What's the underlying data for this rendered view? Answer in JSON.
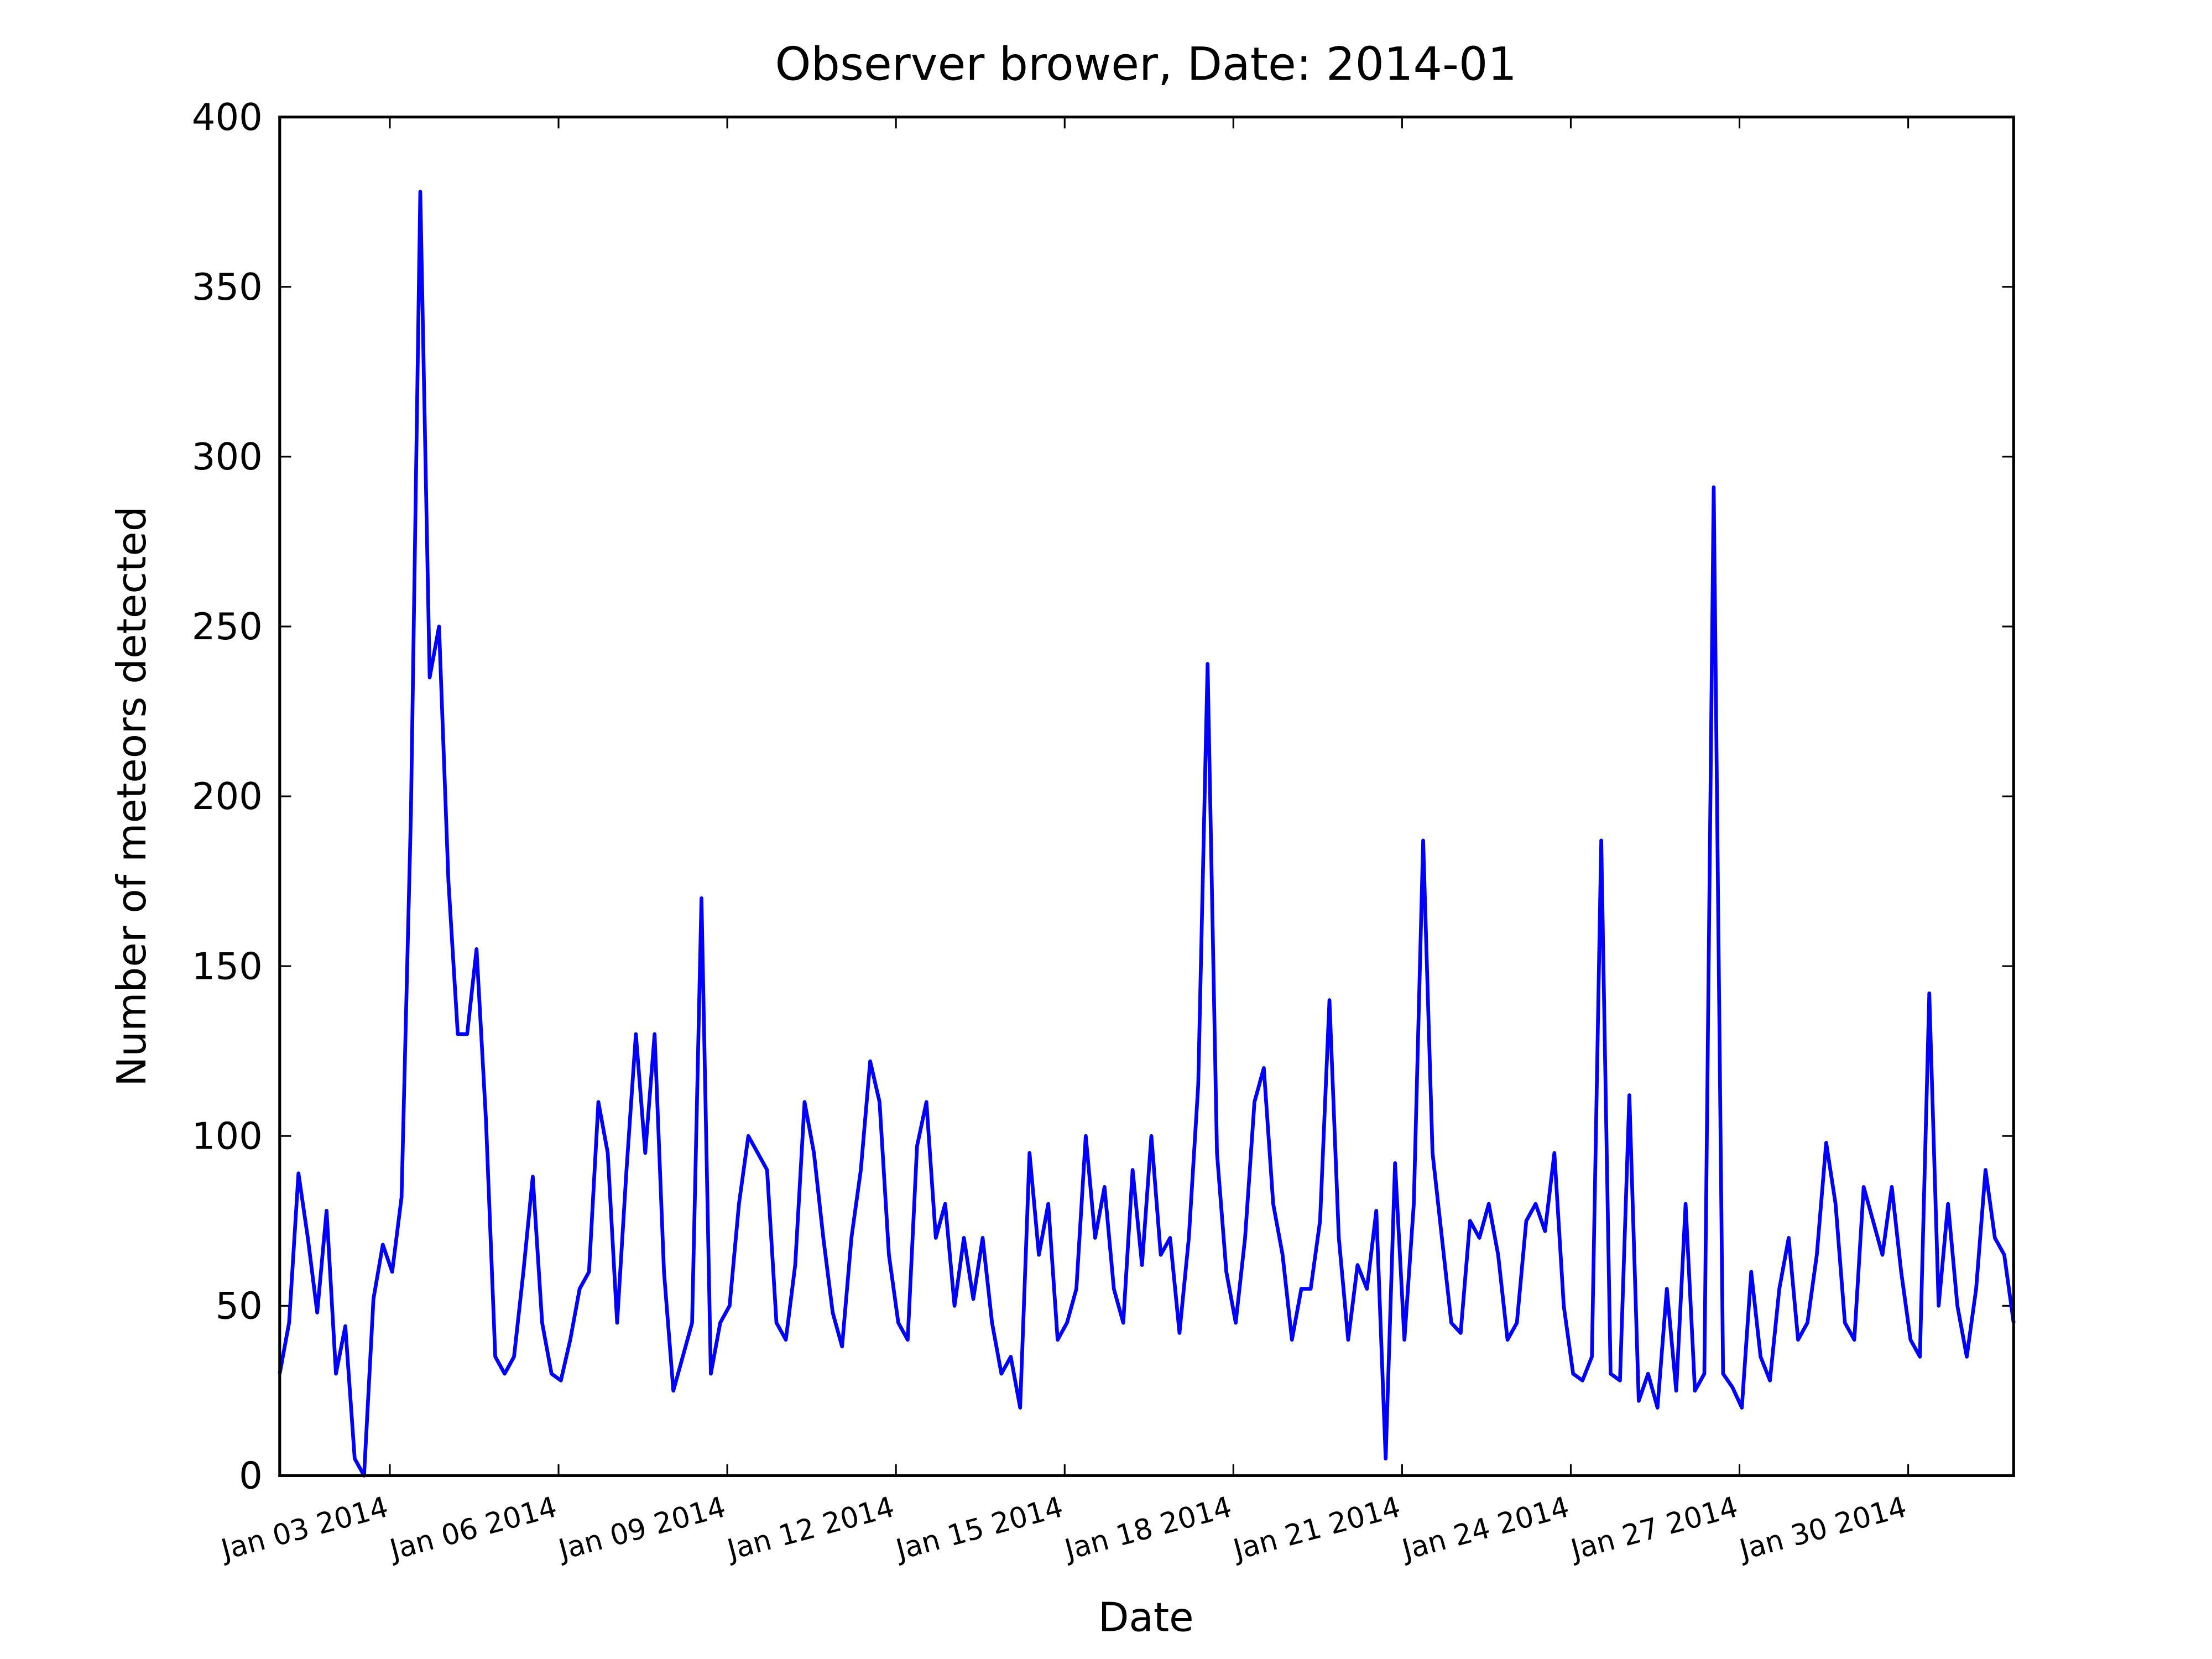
{
  "chart_data": {
    "type": "line",
    "title": "Observer brower, Date: 2014-01",
    "x_label": "Date",
    "y_label": "Number of meteors detected",
    "color": "#0000ff",
    "x": [
      "2014-01-01T01:00",
      "2014-01-01T05:00",
      "2014-01-01T09:00",
      "2014-01-01T13:00",
      "2014-01-01T17:00",
      "2014-01-01T21:00",
      "2014-01-02T01:00",
      "2014-01-02T05:00",
      "2014-01-02T09:00",
      "2014-01-02T13:00",
      "2014-01-02T17:00",
      "2014-01-02T21:00",
      "2014-01-03T01:00",
      "2014-01-03T05:00",
      "2014-01-03T09:00",
      "2014-01-03T13:00",
      "2014-01-03T17:00",
      "2014-01-03T21:00",
      "2014-01-04T01:00",
      "2014-01-04T05:00",
      "2014-01-04T09:00",
      "2014-01-04T13:00",
      "2014-01-04T17:00",
      "2014-01-04T21:00",
      "2014-01-05T01:00",
      "2014-01-05T05:00",
      "2014-01-05T09:00",
      "2014-01-05T13:00",
      "2014-01-05T17:00",
      "2014-01-05T21:00",
      "2014-01-06T01:00",
      "2014-01-06T05:00",
      "2014-01-06T09:00",
      "2014-01-06T13:00",
      "2014-01-06T17:00",
      "2014-01-06T21:00",
      "2014-01-07T01:00",
      "2014-01-07T05:00",
      "2014-01-07T09:00",
      "2014-01-07T13:00",
      "2014-01-07T17:00",
      "2014-01-07T21:00",
      "2014-01-08T01:00",
      "2014-01-08T05:00",
      "2014-01-08T09:00",
      "2014-01-08T13:00",
      "2014-01-08T17:00",
      "2014-01-08T21:00",
      "2014-01-09T01:00",
      "2014-01-09T05:00",
      "2014-01-09T09:00",
      "2014-01-09T13:00",
      "2014-01-09T17:00",
      "2014-01-09T21:00",
      "2014-01-10T01:00",
      "2014-01-10T05:00",
      "2014-01-10T09:00",
      "2014-01-10T13:00",
      "2014-01-10T17:00",
      "2014-01-10T21:00",
      "2014-01-11T01:00",
      "2014-01-11T05:00",
      "2014-01-11T09:00",
      "2014-01-11T13:00",
      "2014-01-11T17:00",
      "2014-01-11T21:00",
      "2014-01-12T01:00",
      "2014-01-12T05:00",
      "2014-01-12T09:00",
      "2014-01-12T13:00",
      "2014-01-12T17:00",
      "2014-01-12T21:00",
      "2014-01-13T01:00",
      "2014-01-13T05:00",
      "2014-01-13T09:00",
      "2014-01-13T13:00",
      "2014-01-13T17:00",
      "2014-01-13T21:00",
      "2014-01-14T01:00",
      "2014-01-14T05:00",
      "2014-01-14T09:00",
      "2014-01-14T13:00",
      "2014-01-14T17:00",
      "2014-01-14T21:00",
      "2014-01-15T01:00",
      "2014-01-15T05:00",
      "2014-01-15T09:00",
      "2014-01-15T13:00",
      "2014-01-15T17:00",
      "2014-01-15T21:00",
      "2014-01-16T01:00",
      "2014-01-16T05:00",
      "2014-01-16T09:00",
      "2014-01-16T13:00",
      "2014-01-16T17:00",
      "2014-01-16T21:00",
      "2014-01-17T01:00",
      "2014-01-17T05:00",
      "2014-01-17T09:00",
      "2014-01-17T13:00",
      "2014-01-17T17:00",
      "2014-01-17T21:00",
      "2014-01-18T01:00",
      "2014-01-18T05:00",
      "2014-01-18T09:00",
      "2014-01-18T13:00",
      "2014-01-18T17:00",
      "2014-01-18T21:00",
      "2014-01-19T01:00",
      "2014-01-19T05:00",
      "2014-01-19T09:00",
      "2014-01-19T13:00",
      "2014-01-19T17:00",
      "2014-01-19T21:00",
      "2014-01-20T01:00",
      "2014-01-20T05:00",
      "2014-01-20T09:00",
      "2014-01-20T13:00",
      "2014-01-20T17:00",
      "2014-01-20T21:00",
      "2014-01-21T01:00",
      "2014-01-21T05:00",
      "2014-01-21T09:00",
      "2014-01-21T13:00",
      "2014-01-21T17:00",
      "2014-01-21T21:00",
      "2014-01-22T01:00",
      "2014-01-22T05:00",
      "2014-01-22T09:00",
      "2014-01-22T13:00",
      "2014-01-22T17:00",
      "2014-01-22T21:00",
      "2014-01-23T01:00",
      "2014-01-23T05:00",
      "2014-01-23T09:00",
      "2014-01-23T13:00",
      "2014-01-23T17:00",
      "2014-01-23T21:00",
      "2014-01-24T01:00",
      "2014-01-24T05:00",
      "2014-01-24T09:00",
      "2014-01-24T13:00",
      "2014-01-24T17:00",
      "2014-01-24T21:00",
      "2014-01-25T01:00",
      "2014-01-25T05:00",
      "2014-01-25T09:00",
      "2014-01-25T13:00",
      "2014-01-25T17:00",
      "2014-01-25T21:00",
      "2014-01-26T01:00",
      "2014-01-26T05:00",
      "2014-01-26T09:00",
      "2014-01-26T13:00",
      "2014-01-26T17:00",
      "2014-01-26T21:00",
      "2014-01-27T01:00",
      "2014-01-27T05:00",
      "2014-01-27T09:00",
      "2014-01-27T13:00",
      "2014-01-27T17:00",
      "2014-01-27T21:00",
      "2014-01-28T01:00",
      "2014-01-28T05:00",
      "2014-01-28T09:00",
      "2014-01-28T13:00",
      "2014-01-28T17:00",
      "2014-01-28T21:00",
      "2014-01-29T01:00",
      "2014-01-29T05:00",
      "2014-01-29T09:00",
      "2014-01-29T13:00",
      "2014-01-29T17:00",
      "2014-01-29T21:00",
      "2014-01-30T01:00",
      "2014-01-30T05:00",
      "2014-01-30T09:00",
      "2014-01-30T13:00",
      "2014-01-30T17:00",
      "2014-01-30T21:00",
      "2014-01-31T01:00",
      "2014-01-31T05:00",
      "2014-01-31T09:00",
      "2014-01-31T13:00",
      "2014-01-31T17:00",
      "2014-01-31T21:00"
    ],
    "values": [
      30,
      45,
      89,
      70,
      48,
      78,
      30,
      44,
      5,
      0,
      52,
      68,
      60,
      82,
      195,
      378,
      235,
      250,
      175,
      130,
      130,
      155,
      105,
      35,
      30,
      35,
      60,
      88,
      45,
      30,
      28,
      40,
      55,
      60,
      110,
      95,
      45,
      90,
      130,
      95,
      130,
      60,
      25,
      35,
      45,
      170,
      30,
      45,
      50,
      80,
      100,
      95,
      90,
      45,
      40,
      62,
      110,
      95,
      70,
      48,
      38,
      70,
      90,
      122,
      110,
      65,
      45,
      40,
      97,
      110,
      70,
      80,
      50,
      70,
      52,
      70,
      45,
      30,
      35,
      20,
      95,
      65,
      80,
      40,
      45,
      55,
      100,
      70,
      85,
      55,
      45,
      90,
      62,
      100,
      65,
      70,
      42,
      70,
      115,
      239,
      95,
      60,
      45,
      70,
      110,
      120,
      80,
      65,
      40,
      55,
      55,
      75,
      140,
      70,
      40,
      62,
      55,
      78,
      5,
      92,
      40,
      80,
      187,
      95,
      70,
      45,
      42,
      75,
      70,
      80,
      65,
      40,
      45,
      75,
      80,
      72,
      95,
      50,
      30,
      28,
      35,
      187,
      30,
      28,
      112,
      22,
      30,
      20,
      55,
      25,
      80,
      25,
      30,
      291,
      30,
      26,
      20,
      60,
      35,
      28,
      55,
      70,
      40,
      45,
      65,
      98,
      80,
      45,
      40,
      85,
      75,
      65,
      85,
      60,
      40,
      35,
      142,
      50,
      80,
      50,
      35,
      55,
      90,
      70,
      65,
      45
    ],
    "xlim": [
      "2014-01-01T01:00",
      "2014-01-31T21:00"
    ],
    "xticks": [
      {
        "value": "2014-01-03T00:00",
        "label": "Jan 03 2014"
      },
      {
        "value": "2014-01-06T00:00",
        "label": "Jan 06 2014"
      },
      {
        "value": "2014-01-09T00:00",
        "label": "Jan 09 2014"
      },
      {
        "value": "2014-01-12T00:00",
        "label": "Jan 12 2014"
      },
      {
        "value": "2014-01-15T00:00",
        "label": "Jan 15 2014"
      },
      {
        "value": "2014-01-18T00:00",
        "label": "Jan 18 2014"
      },
      {
        "value": "2014-01-21T00:00",
        "label": "Jan 21 2014"
      },
      {
        "value": "2014-01-24T00:00",
        "label": "Jan 24 2014"
      },
      {
        "value": "2014-01-27T00:00",
        "label": "Jan 27 2014"
      },
      {
        "value": "2014-01-30T00:00",
        "label": "Jan 30 2014"
      }
    ],
    "ylim": [
      0,
      400
    ],
    "yticks": [
      0,
      50,
      100,
      150,
      200,
      250,
      300,
      350,
      400
    ],
    "grid": false
  }
}
